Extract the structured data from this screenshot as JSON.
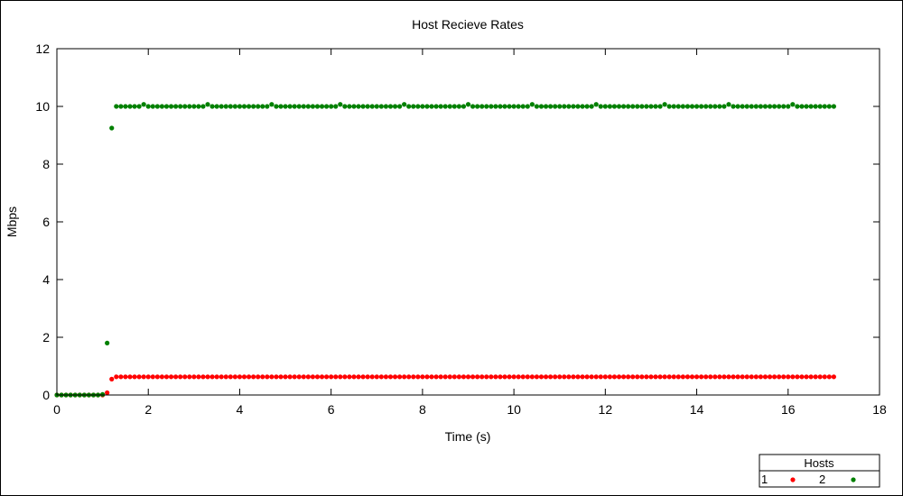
{
  "chart_data": {
    "type": "scatter",
    "title": "Host Recieve Rates",
    "xlabel": "Time (s)",
    "ylabel": "Mbps",
    "xlim": [
      0,
      18
    ],
    "ylim": [
      0,
      12
    ],
    "xticks": [
      0,
      2,
      4,
      6,
      8,
      10,
      12,
      14,
      16,
      18
    ],
    "yticks": [
      0,
      2,
      4,
      6,
      8,
      10,
      12
    ],
    "grid": false,
    "legend": {
      "title": "Hosts",
      "placement": "bottom-right",
      "entries": [
        "1",
        "2"
      ]
    },
    "sample_interval": 0.1,
    "series": [
      {
        "name": "1",
        "color": "#ff0000",
        "points": [
          [
            0.0,
            0
          ],
          [
            0.1,
            0
          ],
          [
            0.2,
            0
          ],
          [
            0.3,
            0
          ],
          [
            0.4,
            0
          ],
          [
            0.5,
            0
          ],
          [
            0.6,
            0
          ],
          [
            0.7,
            0
          ],
          [
            0.8,
            0
          ],
          [
            0.9,
            0
          ],
          [
            1.0,
            0
          ],
          [
            1.1,
            0.08
          ],
          [
            1.2,
            0.55
          ]
        ],
        "steady": {
          "from": 1.3,
          "to": 17.0,
          "value": 0.63
        }
      },
      {
        "name": "2",
        "color": "#008000",
        "points": [
          [
            0.0,
            0
          ],
          [
            0.1,
            0
          ],
          [
            0.2,
            0
          ],
          [
            0.3,
            0
          ],
          [
            0.4,
            0
          ],
          [
            0.5,
            0
          ],
          [
            0.6,
            0
          ],
          [
            0.7,
            0
          ],
          [
            0.8,
            0
          ],
          [
            0.9,
            0
          ],
          [
            1.0,
            0.02
          ],
          [
            1.1,
            1.8
          ],
          [
            1.2,
            9.25
          ]
        ],
        "steady": {
          "from": 1.3,
          "to": 17.0,
          "value": 10.0
        },
        "bumps": [
          [
            1.9,
            10.07
          ],
          [
            3.3,
            10.07
          ],
          [
            4.7,
            10.07
          ],
          [
            6.2,
            10.07
          ],
          [
            7.6,
            10.07
          ],
          [
            9.0,
            10.07
          ],
          [
            10.4,
            10.07
          ],
          [
            11.8,
            10.07
          ],
          [
            13.3,
            10.07
          ],
          [
            14.7,
            10.07
          ],
          [
            16.1,
            10.07
          ]
        ]
      }
    ]
  }
}
